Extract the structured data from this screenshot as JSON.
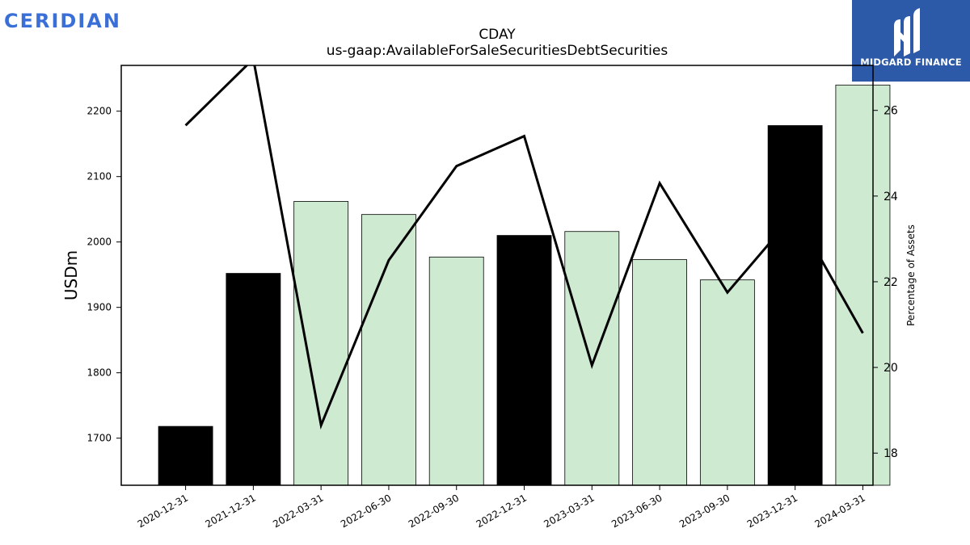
{
  "brand": {
    "name": "CERIDIAN",
    "color": "#3a6fd8"
  },
  "badge": {
    "name": "MIDGARD FINANCE",
    "background": "#2c5aa8",
    "logo_icon": "midgard-m-logo"
  },
  "colors": {
    "highlight_bar": "#000000",
    "regular_bar": "#ceead0",
    "line": "#000000"
  },
  "chart_data": {
    "type": "bar",
    "title": "CDAY",
    "subtitle": "us-gaap:AvailableForSaleSecuritiesDebtSecurities",
    "ylabel": "USDm",
    "y2label": "Percentage of Assets",
    "categories": [
      "2020-12-31",
      "2021-12-31",
      "2022-03-31",
      "2022-06-30",
      "2022-09-30",
      "2022-12-31",
      "2023-03-31",
      "2023-06-30",
      "2023-09-30",
      "2023-12-31",
      "2024-03-31"
    ],
    "series": [
      {
        "values": [
          1718,
          1952,
          2062,
          2042,
          1977,
          2010,
          2016,
          1973,
          1942,
          2178,
          2240
        ],
        "highlight": [
          true,
          true,
          false,
          false,
          false,
          true,
          false,
          false,
          false,
          true,
          false
        ]
      },
      {
        "axis": "right",
        "type": "line",
        "values": [
          25.65,
          27.2,
          18.65,
          22.5,
          24.7,
          25.4,
          20.05,
          24.3,
          21.75,
          23.6,
          20.8
        ]
      }
    ],
    "ylim": [
      1628,
      2270
    ],
    "yticks": [
      1700,
      1800,
      1900,
      2000,
      2100,
      2200
    ],
    "y2lim": [
      17.25,
      27.05
    ],
    "y2ticks": [
      18,
      20,
      22,
      24,
      26
    ],
    "grid": false,
    "legend": "none"
  }
}
